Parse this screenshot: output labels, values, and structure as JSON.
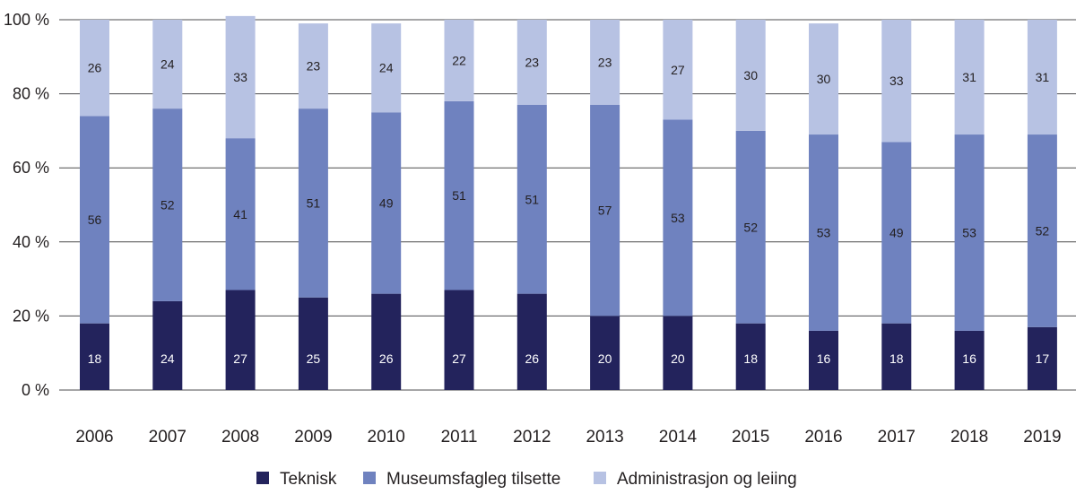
{
  "chart_data": {
    "type": "bar",
    "stacked": true,
    "categories": [
      "2006",
      "2007",
      "2008",
      "2009",
      "2010",
      "2011",
      "2012",
      "2013",
      "2014",
      "2015",
      "2016",
      "2017",
      "2018",
      "2019"
    ],
    "series": [
      {
        "name": "Teknisk",
        "color": "#23235c",
        "label_color": "#ffffff",
        "values": [
          18,
          24,
          27,
          25,
          26,
          27,
          26,
          20,
          20,
          18,
          16,
          18,
          16,
          17
        ]
      },
      {
        "name": "Museumsfagleg tilsette",
        "color": "#6f82bf",
        "label_color": "#231f20",
        "values": [
          56,
          52,
          41,
          51,
          49,
          51,
          51,
          57,
          53,
          52,
          53,
          49,
          53,
          52
        ]
      },
      {
        "name": "Administrasjon og leiing",
        "color": "#b7c2e3",
        "label_color": "#231f20",
        "values": [
          26,
          24,
          33,
          23,
          24,
          22,
          23,
          23,
          27,
          30,
          30,
          33,
          31,
          31
        ]
      }
    ],
    "y_ticks": [
      "0 %",
      "20 %",
      "40 %",
      "60 %",
      "80 %",
      "100 %"
    ],
    "ylim": [
      0,
      100
    ],
    "grid": true,
    "legend_position": "bottom"
  }
}
